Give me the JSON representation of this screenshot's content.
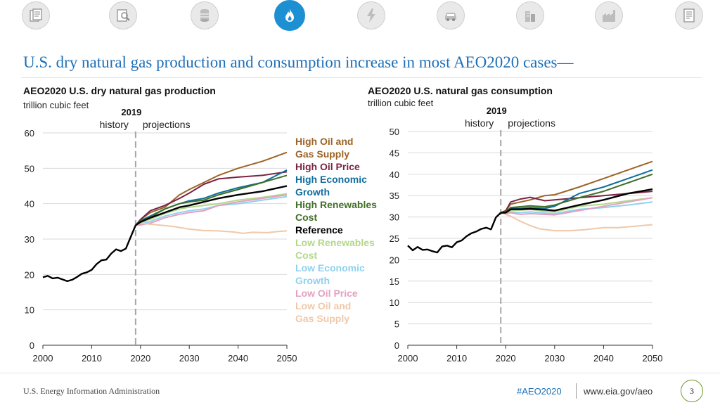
{
  "nav": {
    "icons": [
      {
        "name": "documents-icon"
      },
      {
        "name": "analysis-icon"
      },
      {
        "name": "oil-barrel-icon"
      },
      {
        "name": "natural-gas-flame-icon",
        "active": true
      },
      {
        "name": "electricity-icon"
      },
      {
        "name": "car-icon"
      },
      {
        "name": "buildings-icon"
      },
      {
        "name": "industry-icon"
      },
      {
        "name": "report-icon"
      }
    ],
    "active_color": "#1d8fd3"
  },
  "slide": {
    "title": "U.S. dry natural gas production and consumption increase in most AEO2020 cases—"
  },
  "footer": {
    "org": "U.S. Energy Information Administration",
    "tag": "#AEO2020",
    "url": "www.eia.gov/aeo",
    "page": "3"
  },
  "legend": [
    {
      "label_lines": [
        "High Oil and",
        "Gas Supply"
      ],
      "color": "#9c6427"
    },
    {
      "label_lines": [
        "High Oil Price"
      ],
      "color": "#7b2343"
    },
    {
      "label_lines": [
        "High Economic",
        "Growth"
      ],
      "color": "#0f6e9e"
    },
    {
      "label_lines": [
        "High Renewables",
        "Cost"
      ],
      "color": "#3f6f25"
    },
    {
      "label_lines": [
        "Reference"
      ],
      "color": "#000000"
    },
    {
      "label_lines": [
        "Low Renewables",
        "Cost"
      ],
      "color": "#b3d88a"
    },
    {
      "label_lines": [
        "Low Economic",
        "Growth"
      ],
      "color": "#8fd1ee"
    },
    {
      "label_lines": [
        "Low Oil Price"
      ],
      "color": "#e4a0c0"
    },
    {
      "label_lines": [
        "Low Oil and",
        "Gas Supply"
      ],
      "color": "#f0c8a8"
    }
  ],
  "chart_data": [
    {
      "type": "line",
      "title": "AEO2020 U.S. dry natural gas production",
      "subtitle": "trillion cubic feet",
      "xlim": [
        2000,
        2050
      ],
      "ylim": [
        0,
        60
      ],
      "xticks": [
        2000,
        2010,
        2020,
        2030,
        2040,
        2050
      ],
      "yticks": [
        0,
        10,
        20,
        30,
        40,
        50,
        60
      ],
      "divider": {
        "year": 2019,
        "label": "2019",
        "left": "history",
        "right": "projections"
      },
      "history": {
        "x": [
          2000,
          2001,
          2002,
          2003,
          2004,
          2005,
          2006,
          2007,
          2008,
          2009,
          2010,
          2011,
          2012,
          2013,
          2014,
          2015,
          2016,
          2017,
          2018,
          2019
        ],
        "y": [
          19.2,
          19.6,
          18.9,
          19.1,
          18.6,
          18.1,
          18.5,
          19.3,
          20.2,
          20.6,
          21.3,
          22.9,
          24.0,
          24.2,
          25.9,
          27.1,
          26.6,
          27.3,
          30.6,
          33.9
        ]
      },
      "series": [
        {
          "name": "High Oil and Gas Supply",
          "color": "#9c6427",
          "x": [
            2019,
            2020,
            2022,
            2025,
            2028,
            2030,
            2033,
            2036,
            2040,
            2045,
            2050
          ],
          "y": [
            33.9,
            35.5,
            37.5,
            39.0,
            42.5,
            44.0,
            46.0,
            48.0,
            50.0,
            52.0,
            54.5
          ]
        },
        {
          "name": "High Oil Price",
          "color": "#7b2343",
          "x": [
            2019,
            2020,
            2022,
            2025,
            2028,
            2030,
            2033,
            2036,
            2040,
            2045,
            2050
          ],
          "y": [
            33.9,
            35.5,
            38.0,
            39.5,
            41.5,
            43.0,
            45.5,
            47.0,
            47.5,
            48.0,
            49.0
          ]
        },
        {
          "name": "High Economic Growth",
          "color": "#0f6e9e",
          "x": [
            2019,
            2020,
            2022,
            2025,
            2028,
            2030,
            2033,
            2036,
            2040,
            2045,
            2050
          ],
          "y": [
            33.9,
            35.2,
            36.5,
            38.5,
            40.0,
            40.8,
            41.5,
            43.0,
            44.5,
            46.0,
            49.5
          ]
        },
        {
          "name": "High Renewables Cost",
          "color": "#3f6f25",
          "x": [
            2019,
            2020,
            2022,
            2025,
            2028,
            2030,
            2033,
            2036,
            2040,
            2045,
            2050
          ],
          "y": [
            33.9,
            35.0,
            36.2,
            38.5,
            40.0,
            40.5,
            41.0,
            42.5,
            44.0,
            46.0,
            48.0
          ]
        },
        {
          "name": "Reference",
          "color": "#000000",
          "x": [
            2019,
            2020,
            2022,
            2025,
            2028,
            2030,
            2033,
            2036,
            2040,
            2045,
            2050
          ],
          "y": [
            33.9,
            34.8,
            36.0,
            37.5,
            39.0,
            39.5,
            40.5,
            41.5,
            42.5,
            43.5,
            45.0
          ]
        },
        {
          "name": "Low Renewables Cost",
          "color": "#b3d88a",
          "x": [
            2019,
            2020,
            2022,
            2025,
            2028,
            2030,
            2033,
            2036,
            2040,
            2045,
            2050
          ],
          "y": [
            33.9,
            34.6,
            35.6,
            37.2,
            38.5,
            39.0,
            39.5,
            40.0,
            41.0,
            41.8,
            42.8
          ]
        },
        {
          "name": "Low Economic Growth",
          "color": "#8fd1ee",
          "x": [
            2019,
            2020,
            2022,
            2025,
            2028,
            2030,
            2033,
            2036,
            2040,
            2045,
            2050
          ],
          "y": [
            33.9,
            34.2,
            35.0,
            36.5,
            37.5,
            38.0,
            38.5,
            39.5,
            40.0,
            41.0,
            42.0
          ]
        },
        {
          "name": "Low Oil Price",
          "color": "#e4a0c0",
          "x": [
            2019,
            2020,
            2022,
            2025,
            2028,
            2030,
            2033,
            2036,
            2040,
            2045,
            2050
          ],
          "y": [
            33.9,
            34.0,
            34.5,
            36.0,
            37.0,
            37.5,
            38.0,
            39.5,
            40.5,
            41.5,
            42.5
          ]
        },
        {
          "name": "Low Oil and Gas Supply",
          "color": "#f0c8a8",
          "x": [
            2019,
            2020,
            2022,
            2025,
            2027,
            2030,
            2033,
            2036,
            2039,
            2041,
            2043,
            2046,
            2048,
            2050
          ],
          "y": [
            33.9,
            34.5,
            34.2,
            33.8,
            33.5,
            32.8,
            32.4,
            32.3,
            32.0,
            31.6,
            31.9,
            31.8,
            32.1,
            32.3
          ]
        }
      ]
    },
    {
      "type": "line",
      "title": "AEO2020 U.S. natural gas consumption",
      "subtitle": "trillion cubic feet",
      "xlim": [
        2000,
        2050
      ],
      "ylim": [
        0,
        50
      ],
      "xticks": [
        2000,
        2010,
        2020,
        2030,
        2040,
        2050
      ],
      "yticks": [
        0,
        5,
        10,
        15,
        20,
        25,
        30,
        35,
        40,
        45,
        50
      ],
      "divider": {
        "year": 2019,
        "label": "2019",
        "left": "history",
        "right": "projections"
      },
      "history": {
        "x": [
          2000,
          2001,
          2002,
          2003,
          2004,
          2005,
          2006,
          2007,
          2008,
          2009,
          2010,
          2011,
          2012,
          2013,
          2014,
          2015,
          2016,
          2017,
          2018,
          2019
        ],
        "y": [
          23.3,
          22.2,
          23.0,
          22.3,
          22.4,
          22.0,
          21.7,
          23.1,
          23.3,
          22.9,
          24.1,
          24.5,
          25.5,
          26.2,
          26.6,
          27.2,
          27.5,
          27.1,
          29.9,
          31.0
        ]
      },
      "series": [
        {
          "name": "High Oil and Gas Supply",
          "color": "#9c6427",
          "x": [
            2019,
            2020,
            2021,
            2023,
            2025,
            2028,
            2030,
            2035,
            2040,
            2045,
            2050
          ],
          "y": [
            31.0,
            31.5,
            33.0,
            33.5,
            34.0,
            35.0,
            35.2,
            37.0,
            39.0,
            41.0,
            43.0
          ]
        },
        {
          "name": "High Oil Price",
          "color": "#7b2343",
          "x": [
            2019,
            2020,
            2021,
            2023,
            2025,
            2028,
            2030,
            2035,
            2040,
            2045,
            2050
          ],
          "y": [
            31.0,
            31.4,
            33.5,
            34.2,
            34.6,
            33.8,
            34.0,
            34.5,
            35.0,
            35.5,
            36.0
          ]
        },
        {
          "name": "High Economic Growth",
          "color": "#0f6e9e",
          "x": [
            2019,
            2020,
            2021,
            2023,
            2025,
            2028,
            2030,
            2035,
            2040,
            2045,
            2050
          ],
          "y": [
            31.0,
            31.2,
            32.0,
            32.0,
            32.2,
            32.0,
            32.5,
            35.5,
            37.0,
            39.0,
            41.0
          ]
        },
        {
          "name": "High Renewables Cost",
          "color": "#3f6f25",
          "x": [
            2019,
            2020,
            2021,
            2023,
            2025,
            2028,
            2030,
            2035,
            2040,
            2045,
            2050
          ],
          "y": [
            31.0,
            31.2,
            32.2,
            32.4,
            32.6,
            32.4,
            32.8,
            34.5,
            36.0,
            38.0,
            40.0
          ]
        },
        {
          "name": "Reference",
          "color": "#000000",
          "x": [
            2019,
            2020,
            2021,
            2023,
            2025,
            2028,
            2030,
            2035,
            2040,
            2045,
            2050
          ],
          "y": [
            31.0,
            31.0,
            31.8,
            31.8,
            31.9,
            31.7,
            31.5,
            32.8,
            34.0,
            35.5,
            36.5
          ]
        },
        {
          "name": "Low Renewables Cost",
          "color": "#b3d88a",
          "x": [
            2019,
            2020,
            2021,
            2023,
            2025,
            2028,
            2030,
            2035,
            2040,
            2045,
            2050
          ],
          "y": [
            31.0,
            31.0,
            31.6,
            31.6,
            31.8,
            31.3,
            31.2,
            32.5,
            33.0,
            33.8,
            34.5
          ]
        },
        {
          "name": "Low Economic Growth",
          "color": "#8fd1ee",
          "x": [
            2019,
            2020,
            2021,
            2023,
            2025,
            2028,
            2030,
            2035,
            2040,
            2045,
            2050
          ],
          "y": [
            31.0,
            30.9,
            31.2,
            31.0,
            31.2,
            30.9,
            30.8,
            31.8,
            32.2,
            32.8,
            33.5
          ]
        },
        {
          "name": "Low Oil Price",
          "color": "#e4a0c0",
          "x": [
            2019,
            2020,
            2021,
            2023,
            2025,
            2028,
            2030,
            2035,
            2040,
            2045,
            2050
          ],
          "y": [
            31.0,
            30.8,
            31.0,
            30.6,
            30.8,
            30.6,
            30.5,
            31.5,
            32.5,
            33.5,
            34.5
          ]
        },
        {
          "name": "Low Oil and Gas Supply",
          "color": "#f0c8a8",
          "x": [
            2019,
            2020,
            2021,
            2023,
            2025,
            2027,
            2030,
            2033,
            2036,
            2040,
            2043,
            2046,
            2050
          ],
          "y": [
            31.0,
            30.6,
            30.2,
            29.0,
            28.0,
            27.2,
            26.8,
            26.8,
            27.0,
            27.5,
            27.5,
            27.8,
            28.2
          ]
        }
      ]
    }
  ]
}
